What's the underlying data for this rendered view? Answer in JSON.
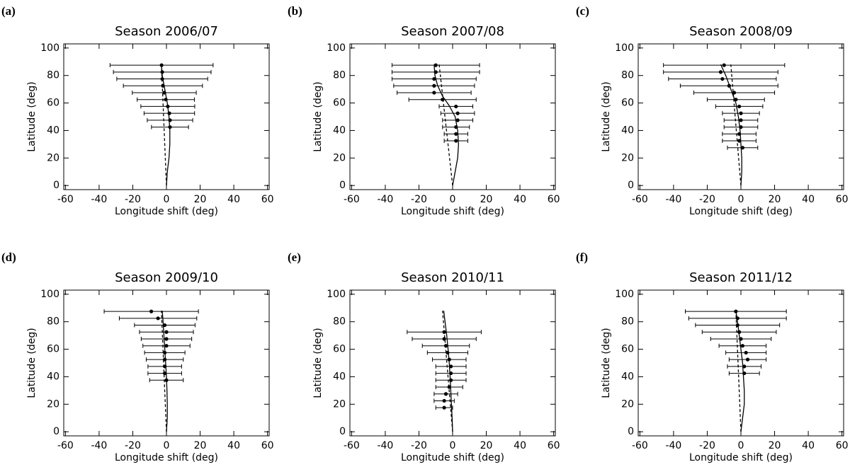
{
  "chart_data": [
    {
      "type": "scatter",
      "label": "(a)",
      "title": "Season 2006/07",
      "xlabel": "Longitude shift (deg)",
      "ylabel": "Latitude (deg)",
      "xlim": [
        -61,
        61
      ],
      "ylim": [
        -3,
        103
      ],
      "xticks": [
        -60,
        -40,
        -20,
        0,
        20,
        40,
        60
      ],
      "yticks": [
        0,
        20,
        40,
        60,
        80,
        100
      ],
      "points": {
        "y": [
          87.5,
          82.5,
          77.5,
          72.5,
          67.5,
          62.5,
          57.5,
          52.5,
          47.5,
          42.5
        ],
        "x": [
          -2.9,
          -2.5,
          -2.5,
          -2.1,
          -1.3,
          -0.4,
          0.8,
          1.7,
          2.1,
          2.1
        ],
        "xerr": [
          30.6,
          29,
          27,
          23.5,
          19,
          17,
          16,
          15,
          13.5,
          11
        ]
      },
      "curves": [
        {
          "style": "solid",
          "x": [
            0,
            0.5,
            1.5,
            2,
            2,
            1.5,
            0.5,
            -1,
            -2.5,
            -3
          ],
          "y": [
            0,
            10,
            20,
            30,
            40,
            50,
            60,
            70,
            80,
            88
          ]
        },
        {
          "style": "dashed",
          "x": [
            0,
            -3
          ],
          "y": [
            0,
            88
          ]
        }
      ]
    },
    {
      "type": "scatter",
      "label": "(b)",
      "title": "Season 2007/08",
      "xlabel": "Longitude shift (deg)",
      "ylabel": "Latitude (deg)",
      "xlim": [
        -61,
        61
      ],
      "ylim": [
        -3,
        103
      ],
      "xticks": [
        -60,
        -40,
        -20,
        0,
        20,
        40,
        60
      ],
      "yticks": [
        0,
        20,
        40,
        60,
        80,
        100
      ],
      "points": {
        "y": [
          87.5,
          82.5,
          77.5,
          72.5,
          67.5,
          62.5,
          57.5,
          52.5,
          47.5,
          42.5,
          37.5,
          32.5
        ],
        "x": [
          -10,
          -10,
          -11,
          -11,
          -11,
          -6,
          2,
          3,
          3,
          2,
          2,
          2
        ],
        "xerr": [
          26,
          26,
          25,
          24,
          22,
          20,
          10,
          10,
          9,
          8,
          7,
          7
        ]
      },
      "curves": [
        {
          "style": "solid",
          "x": [
            0,
            1.5,
            3,
            3.5,
            3,
            1.5,
            -2,
            -6,
            -9,
            -10.5,
            -11
          ],
          "y": [
            0,
            10,
            20,
            30,
            40,
            50,
            58,
            65,
            73,
            80,
            88
          ]
        },
        {
          "style": "dashed",
          "x": [
            0,
            -8
          ],
          "y": [
            0,
            88
          ]
        }
      ]
    },
    {
      "type": "scatter",
      "label": "(c)",
      "title": "Season 2008/09",
      "xlabel": "Longitude shift (deg)",
      "ylabel": "Latitude (deg)",
      "xlim": [
        -61,
        61
      ],
      "ylim": [
        -3,
        103
      ],
      "xticks": [
        -60,
        -40,
        -20,
        0,
        20,
        40,
        60
      ],
      "yticks": [
        0,
        20,
        40,
        60,
        80,
        100
      ],
      "points": {
        "y": [
          87.5,
          82.5,
          77.5,
          72.5,
          67.5,
          62.5,
          57.5,
          52.5,
          47.5,
          42.5,
          37.5,
          32.5,
          27.5
        ],
        "x": [
          -10,
          -12,
          -11,
          -7,
          -4,
          -3,
          -1,
          0,
          0,
          0,
          -1,
          -1,
          1
        ],
        "xerr": [
          36,
          34,
          32,
          29,
          24,
          17,
          14,
          11,
          10,
          10,
          10,
          10,
          9
        ]
      },
      "curves": [
        {
          "style": "solid",
          "x": [
            0,
            0.5,
            0.5,
            0,
            -0.5,
            -1.5,
            -3,
            -6,
            -9,
            -12
          ],
          "y": [
            0,
            10,
            20,
            30,
            40,
            50,
            60,
            70,
            80,
            88
          ]
        },
        {
          "style": "dashed",
          "x": [
            0,
            -6
          ],
          "y": [
            0,
            88
          ]
        }
      ]
    },
    {
      "type": "scatter",
      "label": "(d)",
      "title": "Season 2009/10",
      "xlabel": "Longitude shift (deg)",
      "ylabel": "Latitude (deg)",
      "xlim": [
        -61,
        61
      ],
      "ylim": [
        -3,
        103
      ],
      "xticks": [
        -60,
        -40,
        -20,
        0,
        20,
        40,
        60
      ],
      "yticks": [
        0,
        20,
        40,
        60,
        80,
        100
      ],
      "points": {
        "y": [
          87.5,
          82.5,
          77.5,
          72.5,
          67.5,
          62.5,
          57.5,
          52.5,
          47.5,
          42.5,
          37.5
        ],
        "x": [
          -9,
          -5,
          -1,
          0,
          0,
          0,
          -1,
          -1,
          -1,
          -1,
          0
        ],
        "xerr": [
          28,
          23,
          18,
          16,
          15,
          14,
          12,
          11,
          10,
          10,
          10
        ]
      },
      "curves": [
        {
          "style": "solid",
          "x": [
            0,
            0.5,
            0.5,
            0.3,
            0,
            -0.5,
            -1,
            -1.5,
            -2,
            -2.5
          ],
          "y": [
            0,
            10,
            20,
            30,
            40,
            50,
            60,
            70,
            80,
            88
          ]
        },
        {
          "style": "dashed",
          "x": [
            0,
            -3
          ],
          "y": [
            0,
            88
          ]
        }
      ]
    },
    {
      "type": "scatter",
      "label": "(e)",
      "title": "Season 2010/11",
      "xlabel": "Longitude shift (deg)",
      "ylabel": "Latitude (deg)",
      "xlim": [
        -61,
        61
      ],
      "ylim": [
        -3,
        103
      ],
      "xticks": [
        -60,
        -40,
        -20,
        0,
        20,
        40,
        60
      ],
      "yticks": [
        0,
        20,
        40,
        60,
        80,
        100
      ],
      "points": {
        "y": [
          72.5,
          67.5,
          62.5,
          57.5,
          52.5,
          47.5,
          42.5,
          37.5,
          32.5,
          27.5,
          22.5,
          17.5
        ],
        "x": [
          -5,
          -5,
          -4,
          -3,
          -2,
          -1,
          -1,
          -1,
          -2,
          -4,
          -5,
          -5
        ],
        "xerr": [
          22,
          19,
          14,
          12,
          10,
          9,
          9,
          9,
          8,
          7,
          6,
          5
        ]
      },
      "curves": [
        {
          "style": "solid",
          "x": [
            0,
            -0.3,
            -0.7,
            -1.1,
            -1.5,
            -2,
            -2.7,
            -3.5,
            -4.5,
            -5.3
          ],
          "y": [
            0,
            10,
            20,
            30,
            40,
            50,
            60,
            70,
            80,
            88
          ]
        },
        {
          "style": "dashed",
          "x": [
            0,
            -6
          ],
          "y": [
            0,
            88
          ]
        }
      ]
    },
    {
      "type": "scatter",
      "label": "(f)",
      "title": "Season 2011/12",
      "xlabel": "Longitude shift (deg)",
      "ylabel": "Latitude (deg)",
      "xlim": [
        -61,
        61
      ],
      "ylim": [
        -3,
        103
      ],
      "xticks": [
        -60,
        -40,
        -20,
        0,
        20,
        40,
        60
      ],
      "yticks": [
        0,
        20,
        40,
        60,
        80,
        100
      ],
      "points": {
        "y": [
          87.5,
          82.5,
          77.5,
          72.5,
          67.5,
          62.5,
          57.5,
          52.5,
          47.5,
          42.5
        ],
        "x": [
          -3,
          -2,
          -2,
          -1,
          0,
          1,
          3,
          4,
          2,
          2
        ],
        "xerr": [
          30,
          29,
          25,
          22,
          18,
          14,
          12,
          11,
          10,
          9
        ]
      },
      "curves": [
        {
          "style": "solid",
          "x": [
            0,
            1,
            2,
            2,
            1.5,
            1,
            0,
            -1,
            -2,
            -3
          ],
          "y": [
            0,
            10,
            20,
            30,
            40,
            50,
            60,
            70,
            80,
            88
          ]
        },
        {
          "style": "dashed",
          "x": [
            0,
            -3
          ],
          "y": [
            0,
            88
          ]
        }
      ]
    }
  ]
}
